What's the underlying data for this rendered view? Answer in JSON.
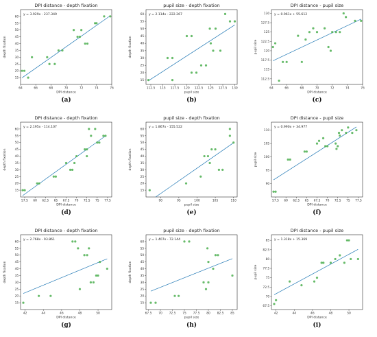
{
  "colors": {
    "point": "#4caf50",
    "point_dark": "#2e7d32",
    "fit_line": "#1f77b4",
    "axes": "#000000"
  },
  "chart_data": [
    {
      "id": "a",
      "panel_label": "(a)",
      "type": "scatter",
      "title": "DPI distance - depth fixation",
      "xlabel": "DPI distance",
      "ylabel": "depth fixation",
      "equation": "y = 3.929x - 237.349",
      "fit": {
        "slope": 3.929,
        "intercept": -237.349
      },
      "xlim": [
        64,
        76
      ],
      "ylim": [
        10,
        65
      ],
      "xticks": [
        64,
        66,
        68,
        70,
        72,
        74,
        76
      ],
      "yticks": [
        15,
        20,
        25,
        30,
        35,
        40,
        45,
        50,
        55,
        60
      ],
      "x": [
        64.2,
        64.5,
        65.0,
        65.5,
        67.5,
        67.8,
        68.5,
        69.0,
        69.5,
        71.0,
        71.5,
        71.8,
        72.0,
        72.5,
        72.8,
        73.8,
        74.0,
        75.0,
        75.8
      ],
      "y": [
        20,
        20,
        15,
        30,
        30,
        25,
        25,
        35,
        35,
        50,
        45,
        45,
        50,
        40,
        40,
        55,
        55,
        60,
        60
      ]
    },
    {
      "id": "b",
      "panel_label": "(b)",
      "type": "scatter",
      "title": "pupil size - depth fixation",
      "xlabel": "pupil size",
      "ylabel": "depth fixation",
      "equation": "y = 2.114x - 222.267",
      "fit": {
        "slope": 2.114,
        "intercept": -222.267
      },
      "xlim": [
        111.5,
        130.5
      ],
      "ylim": [
        12,
        63
      ],
      "xticks": [
        112.5,
        115.0,
        117.5,
        120.0,
        122.5,
        125.0,
        127.5,
        130.0
      ],
      "yticks": [
        15,
        20,
        25,
        30,
        35,
        40,
        45,
        50,
        55,
        60
      ],
      "x": [
        112.0,
        116.0,
        117.0,
        117.0,
        120.0,
        121.0,
        121.0,
        122.0,
        123.0,
        124.0,
        124.8,
        125.0,
        125.5,
        126.0,
        127.0,
        128.0,
        129.0,
        130.0
      ],
      "y": [
        15,
        30,
        30,
        15,
        45,
        45,
        20,
        20,
        25,
        25,
        50,
        40,
        35,
        50,
        35,
        60,
        55,
        55
      ]
    },
    {
      "id": "c",
      "panel_label": "(c)",
      "type": "scatter",
      "title": "DPI distance - pupil size",
      "xlabel": "DPI distance",
      "ylabel": "pupil size",
      "equation": "y = 0.961x + 55.612",
      "fit": {
        "slope": 0.961,
        "intercept": 55.612
      },
      "xlim": [
        64,
        76
      ],
      "ylim": [
        111,
        131
      ],
      "xticks": [
        64,
        66,
        68,
        70,
        72,
        74,
        76
      ],
      "yticks": [
        112.5,
        115.0,
        117.5,
        120.0,
        122.5,
        125.0,
        127.5,
        130.0
      ],
      "x": [
        64.2,
        64.5,
        65.0,
        65.5,
        66.0,
        67.5,
        68.0,
        68.5,
        69.0,
        69.5,
        70.0,
        71.0,
        71.5,
        71.8,
        72.0,
        72.5,
        73.0,
        73.5,
        73.8,
        75.0,
        75.8
      ],
      "y": [
        121,
        122,
        112,
        117,
        117,
        124,
        117,
        123,
        125,
        126,
        125,
        126,
        121,
        120,
        125,
        125,
        125,
        130,
        129,
        128,
        128
      ]
    },
    {
      "id": "d",
      "panel_label": "(d)",
      "type": "scatter",
      "title": "DPI distance - depth fixation",
      "xlabel": "DPI distance",
      "ylabel": "depth fixation",
      "equation": "y = 2.195x - 114.107",
      "fit": {
        "slope": 2.195,
        "intercept": -114.107
      },
      "xlim": [
        56.5,
        78.5
      ],
      "ylim": [
        10,
        65
      ],
      "xticks": [
        57.5,
        60.0,
        62.5,
        65.0,
        67.5,
        70.0,
        72.5,
        75.0,
        77.5
      ],
      "yticks": [
        15,
        20,
        25,
        30,
        35,
        40,
        45,
        50,
        55,
        60
      ],
      "x": [
        57.0,
        57.5,
        60.5,
        61.0,
        64.5,
        65.0,
        67.5,
        68.5,
        69.0,
        69.5,
        70.0,
        72.0,
        72.5,
        72.5,
        73.0,
        73.5,
        74.5,
        75.0,
        75.5,
        76.5,
        77.0
      ],
      "y": [
        15,
        15,
        20,
        20,
        25,
        25,
        35,
        30,
        30,
        35,
        40,
        45,
        45,
        40,
        60,
        55,
        60,
        50,
        50,
        55,
        55
      ]
    },
    {
      "id": "e",
      "panel_label": "(e)",
      "type": "scatter",
      "title": "pupil size - depth fixation",
      "xlabel": "pupil size",
      "ylabel": "depth fixation",
      "equation": "y = 1.867x - 155.522",
      "fit": {
        "slope": 1.867,
        "intercept": -155.522
      },
      "xlim": [
        86,
        111
      ],
      "ylim": [
        10,
        65
      ],
      "xticks": [
        90,
        95,
        100,
        105,
        110
      ],
      "yticks": [
        15,
        20,
        25,
        30,
        35,
        40,
        45,
        50,
        55,
        60
      ],
      "x": [
        87.0,
        97.0,
        101.0,
        102.0,
        103.0,
        103.5,
        104.0,
        105.0,
        106.0,
        107.0,
        109.0,
        109.0,
        110.0
      ],
      "y": [
        15,
        20,
        25,
        40,
        40,
        35,
        45,
        45,
        30,
        30,
        60,
        55,
        50
      ]
    },
    {
      "id": "f",
      "panel_label": "(f)",
      "type": "scatter",
      "title": "DPI distance - pupil size",
      "xlabel": "DPI distance",
      "ylabel": "pupil size",
      "equation": "y = 0.990x + 34.977",
      "fit": {
        "slope": 0.99,
        "intercept": 34.977
      },
      "xlim": [
        56.5,
        78.5
      ],
      "ylim": [
        85,
        113
      ],
      "xticks": [
        57.5,
        60.0,
        62.5,
        65.0,
        67.5,
        70.0,
        72.5,
        75.0,
        77.5
      ],
      "yticks": [
        90,
        95,
        100,
        105,
        110
      ],
      "x": [
        57.0,
        57.5,
        60.5,
        61.0,
        64.5,
        65.0,
        67.5,
        68.0,
        69.0,
        69.5,
        70.0,
        72.0,
        72.2,
        72.5,
        72.8,
        73.0,
        73.5,
        74.5,
        75.0,
        76.0,
        77.0
      ],
      "y": [
        87,
        87,
        99,
        99,
        102,
        102,
        105,
        106,
        107,
        104,
        104,
        105,
        103,
        104,
        109,
        108,
        110,
        109,
        111,
        109,
        110
      ]
    },
    {
      "id": "g",
      "panel_label": "(g)",
      "type": "scatter",
      "title": "DPI distance - depth fixation",
      "xlabel": "DPI distance",
      "ylabel": "depth fixation",
      "equation": "y = 2.768x - 93.861",
      "fit": {
        "slope": 2.768,
        "intercept": -93.861
      },
      "xlim": [
        41.5,
        51.5
      ],
      "ylim": [
        10,
        65
      ],
      "xticks": [
        42,
        44,
        46,
        48,
        50
      ],
      "yticks": [
        15,
        20,
        25,
        30,
        35,
        40,
        45,
        50,
        55,
        60
      ],
      "x": [
        41.8,
        43.5,
        44.8,
        47.2,
        47.5,
        47.8,
        48.0,
        48.5,
        48.8,
        49.0,
        49.2,
        49.5,
        49.8,
        50.0,
        50.2,
        51.0
      ],
      "y": [
        15,
        20,
        20,
        60,
        60,
        55,
        25,
        50,
        50,
        55,
        30,
        30,
        35,
        35,
        45,
        40
      ]
    },
    {
      "id": "h",
      "panel_label": "(h)",
      "type": "scatter",
      "title": "pupil size - depth fixation",
      "xlabel": "pupil size",
      "ylabel": "depth fixation",
      "equation": "y = 1.407x - 72.144",
      "fit": {
        "slope": 1.407,
        "intercept": -72.144
      },
      "xlim": [
        67,
        86
      ],
      "ylim": [
        10,
        65
      ],
      "xticks": [
        67.5,
        70.0,
        72.5,
        75.0,
        77.5,
        80.0,
        82.5,
        85.0
      ],
      "yticks": [
        15,
        20,
        25,
        30,
        35,
        40,
        45,
        50,
        55,
        60
      ],
      "x": [
        68.0,
        69.0,
        73.0,
        73.8,
        75.0,
        76.0,
        79.0,
        79.5,
        79.8,
        80.0,
        80.0,
        81.0,
        81.5,
        82.0,
        85.0
      ],
      "y": [
        15,
        15,
        20,
        20,
        60,
        60,
        30,
        25,
        55,
        45,
        30,
        40,
        50,
        50,
        35
      ]
    },
    {
      "id": "i",
      "panel_label": "(i)",
      "type": "scatter",
      "title": "DPI distance - pupil size",
      "xlabel": "DPI distance",
      "ylabel": "pupil size",
      "equation": "y = 1.318x + 15.369",
      "fit": {
        "slope": 1.318,
        "intercept": 15.369
      },
      "xlim": [
        41.5,
        51.5
      ],
      "ylim": [
        66.5,
        86.5
      ],
      "xticks": [
        42,
        44,
        46,
        48,
        50
      ],
      "yticks": [
        67.5,
        70.0,
        72.5,
        75.0,
        77.5,
        80.0,
        82.5,
        85.0
      ],
      "x": [
        41.8,
        42.0,
        43.5,
        44.8,
        46.2,
        46.5,
        47.0,
        47.2,
        48.0,
        48.5,
        49.0,
        49.5,
        49.8,
        50.0,
        50.2,
        51.0
      ],
      "y": [
        68,
        69,
        74,
        73,
        74,
        75,
        79,
        79,
        79,
        80,
        81,
        79,
        85,
        85,
        80,
        80
      ]
    }
  ]
}
